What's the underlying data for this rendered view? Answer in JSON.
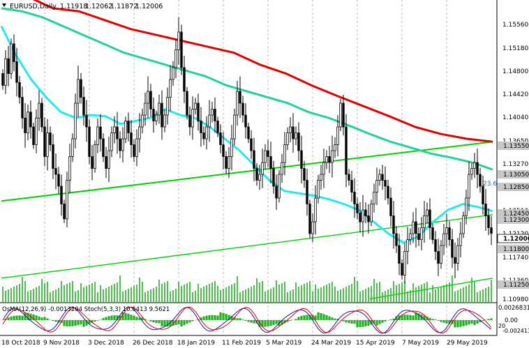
{
  "header": {
    "symbol_label": "EURUSD,Daily",
    "ohlc": [
      "1.11918",
      "1.12062",
      "1.11872",
      "1.12006"
    ]
  },
  "colors": {
    "candle": "#000000",
    "ema200": "#e00000",
    "ema144": "#22d0a0",
    "ema50": "#22e8f0",
    "trend": "#00d000",
    "volume": "#22b022",
    "osma": "#22b022",
    "stoch_main": "#1a1aa0",
    "stoch_signal": "#e00000",
    "badge_bg": "#c8c8c8",
    "price_badge_bg": "#ffffff"
  },
  "price_axis": {
    "labels": [
      "1.15560",
      "1.15180",
      "1.14800",
      "1.14420",
      "1.14040",
      "1.13650",
      "1.13270",
      "1.12510",
      "1.12120",
      "1.11740",
      "1.11360",
      "1.10980"
    ],
    "badges": [
      "1.13550",
      "1.13050",
      "1.12850",
      "1.12450",
      "1.12300",
      "1.11800",
      "1.11250"
    ],
    "current_price": "1.12006",
    "ema_badge": "23.6"
  },
  "time_axis": {
    "labels": [
      "18 Oct 2018",
      "9 Nov 2018",
      "3 Dec 2018",
      "26 Dec 2018",
      "18 Jan 2019",
      "11 Feb 2019",
      "5 Mar 2019",
      "24 Mar 2019",
      "15 Apr 2019",
      "7 May 2019",
      "29 May 2019"
    ]
  },
  "indicator": {
    "title": "OsMA(12,26,9) -0.0013204  Stoch(5,3,3) 10.6413 9.5621",
    "axis_labels": [
      "0.0026831",
      "0.00",
      "20",
      "-0.0024136"
    ]
  },
  "chart_data": {
    "type": "candlestick",
    "symbol": "EURUSD",
    "timeframe": "Daily",
    "ohlc_last": {
      "open": 1.11918,
      "high": 1.12062,
      "low": 1.11872,
      "close": 1.12006
    },
    "ylim": [
      1.1086,
      1.1594
    ],
    "closes": [
      1.145,
      1.1495,
      1.147,
      1.152,
      1.149,
      1.1455,
      1.143,
      1.1395,
      1.137,
      1.1405,
      1.138,
      1.135,
      1.1395,
      1.142,
      1.138,
      1.133,
      1.137,
      1.135,
      1.131,
      1.13,
      1.128,
      1.125,
      1.1225,
      1.129,
      1.133,
      1.136,
      1.142,
      1.146,
      1.143,
      1.14,
      1.138,
      1.133,
      1.131,
      1.135,
      1.138,
      1.136,
      1.133,
      1.131,
      1.134,
      1.137,
      1.138,
      1.136,
      1.134,
      1.136,
      1.139,
      1.137,
      1.135,
      1.133,
      1.136,
      1.138,
      1.14,
      1.142,
      1.144,
      1.141,
      1.139,
      1.14,
      1.142,
      1.138,
      1.14,
      1.143,
      1.146,
      1.148,
      1.151,
      1.154,
      1.148,
      1.144,
      1.14,
      1.138,
      1.141,
      1.142,
      1.139,
      1.137,
      1.136,
      1.138,
      1.14,
      1.141,
      1.139,
      1.137,
      1.135,
      1.133,
      1.131,
      1.133,
      1.136,
      1.14,
      1.144,
      1.142,
      1.14,
      1.138,
      1.136,
      1.134,
      1.131,
      1.129,
      1.13,
      1.132,
      1.134,
      1.133,
      1.131,
      1.128,
      1.126,
      1.13,
      1.132,
      1.135,
      1.137,
      1.138,
      1.136,
      1.137,
      1.134,
      1.131,
      1.129,
      1.125,
      1.12,
      1.122,
      1.126,
      1.129,
      1.13,
      1.132,
      1.133,
      1.132,
      1.134,
      1.135,
      1.138,
      1.142,
      1.138,
      1.13,
      1.129,
      1.127,
      1.125,
      1.1235,
      1.122,
      1.124,
      1.123,
      1.122,
      1.125,
      1.127,
      1.129,
      1.13,
      1.129,
      1.128,
      1.126,
      1.123,
      1.12,
      1.118,
      1.115,
      1.113,
      1.117,
      1.119,
      1.12,
      1.122,
      1.12,
      1.119,
      1.121,
      1.123,
      1.124,
      1.121,
      1.119,
      1.117,
      1.115,
      1.118,
      1.12,
      1.121,
      1.119,
      1.116,
      1.115,
      1.118,
      1.12,
      1.123,
      1.126,
      1.13,
      1.131,
      1.132,
      1.13,
      1.128,
      1.125,
      1.123,
      1.121,
      1.12006
    ],
    "ema50": [
      1.155,
      1.15,
      1.146,
      1.143,
      1.1405,
      1.1395,
      1.14,
      1.1398,
      1.1385,
      1.139,
      1.1395,
      1.141,
      1.14,
      1.1395,
      1.138,
      1.136,
      1.134,
      1.1315,
      1.129,
      1.1272,
      1.1268,
      1.1264,
      1.1258,
      1.125,
      1.124,
      1.122,
      1.12,
      1.1185,
      1.1195,
      1.122,
      1.124,
      1.125,
      1.1245,
      1.1238
    ],
    "ema144": [
      1.158,
      1.1575,
      1.1565,
      1.155,
      1.1535,
      1.152,
      1.1505,
      1.1495,
      1.1485,
      1.1475,
      1.1465,
      1.145,
      1.144,
      1.143,
      1.142,
      1.1405,
      1.1395,
      1.1382,
      1.1368,
      1.1355,
      1.1345,
      1.1335,
      1.1328,
      1.132,
      1.1308
    ],
    "ema200": [
      1.162,
      1.16,
      1.158,
      1.1575,
      1.156,
      1.1545,
      1.1535,
      1.1525,
      1.1515,
      1.1505,
      1.1485,
      1.147,
      1.145,
      1.1432,
      1.1415,
      1.1398,
      1.138,
      1.1368,
      1.136,
      1.1355
    ],
    "trendlines": [
      {
        "name": "upper",
        "from": [
          0,
          1.1255
        ],
        "to": [
          1,
          1.1355
        ]
      },
      {
        "name": "middle",
        "from": [
          0,
          1.1125
        ],
        "to": [
          1,
          1.1232
        ]
      },
      {
        "name": "lower",
        "from": [
          0.75,
          1.109
        ],
        "to": [
          1,
          1.1125
        ]
      }
    ]
  }
}
